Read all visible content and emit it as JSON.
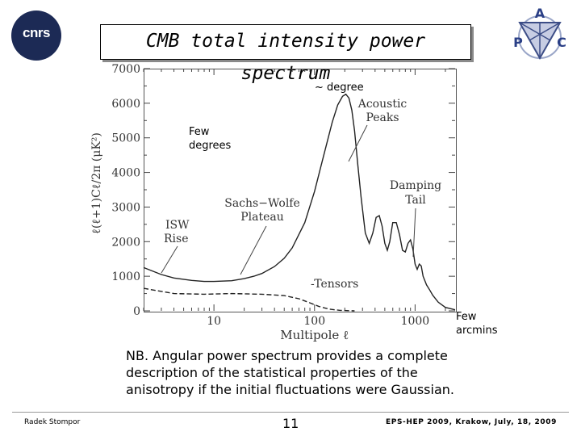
{
  "slide": {
    "title": "CMB total intensity power spectrum",
    "logos": {
      "left": "cnrs",
      "right_letters": [
        "A",
        "P",
        "C"
      ]
    },
    "note": "NB. Angular power spectrum provides a complete description of the statistical properties of the anisotropy if the initial fluctuations were Gaussian.",
    "footer": {
      "left": "Radek Stompor",
      "page": "11",
      "right": "EPS-HEP 2009, Krakow, July, 18, 2009"
    }
  },
  "annotations": {
    "degree": "~ degree",
    "few_degrees": [
      "Few",
      "degrees"
    ],
    "few_arcmins": [
      "Few",
      "arcmins"
    ]
  },
  "chart_data": {
    "type": "line",
    "xlabel": "Multipole ℓ",
    "ylabel": "ℓ(ℓ+1)Cℓ/2π (μK²)",
    "xscale": "log",
    "xlim": [
      2,
      2500
    ],
    "ylim": [
      0,
      7000
    ],
    "xticks": [
      "10",
      "100",
      "1000"
    ],
    "yticks": [
      "0",
      "1000",
      "2000",
      "3000",
      "4000",
      "5000",
      "6000",
      "7000"
    ],
    "grid": false,
    "labels": {
      "acoustic_peaks": [
        "Acoustic",
        "Peaks"
      ],
      "damping_tail": [
        "Damping",
        "Tail"
      ],
      "sachs_wolfe": [
        "Sachs−Wolfe",
        "Plateau"
      ],
      "isw": [
        "ISW",
        "Rise"
      ],
      "tensors": "Tensors"
    },
    "series": [
      {
        "x": [
          2,
          3,
          4,
          6,
          8,
          10,
          15,
          20,
          25,
          30,
          40,
          50,
          60,
          80,
          100,
          120,
          150,
          170,
          190,
          205,
          220,
          235,
          250,
          270,
          290,
          320,
          350,
          380,
          410,
          440,
          470,
          500,
          530,
          560,
          600,
          650,
          700,
          750,
          800,
          850,
          900,
          950,
          1000,
          1050,
          1100,
          1150,
          1200,
          1300,
          1400,
          1500,
          1700,
          2000,
          2500
        ],
        "values": [
          1250,
          1050,
          950,
          880,
          850,
          850,
          870,
          930,
          1000,
          1080,
          1280,
          1520,
          1820,
          2550,
          3450,
          4350,
          5450,
          5950,
          6200,
          6260,
          6150,
          5800,
          5200,
          4200,
          3300,
          2250,
          1950,
          2250,
          2700,
          2750,
          2450,
          1950,
          1750,
          2000,
          2550,
          2550,
          2200,
          1750,
          1700,
          1950,
          2050,
          1800,
          1350,
          1200,
          1350,
          1300,
          1000,
          750,
          600,
          450,
          250,
          100,
          30
        ]
      },
      {
        "name": "Tensors",
        "x": [
          2,
          4,
          8,
          15,
          30,
          50,
          70,
          90,
          110,
          140,
          180,
          250
        ],
        "values": [
          650,
          500,
          480,
          500,
          480,
          440,
          350,
          230,
          130,
          50,
          15,
          0
        ]
      }
    ]
  }
}
